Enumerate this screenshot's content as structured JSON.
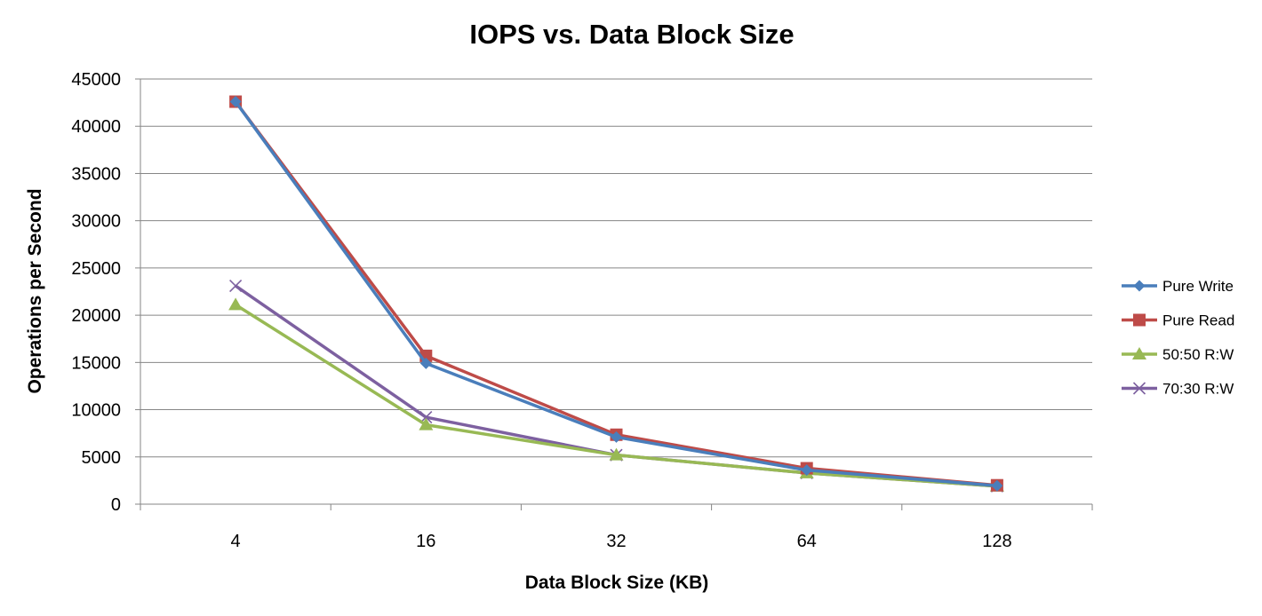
{
  "chart_data": {
    "type": "line",
    "title": "IOPS vs. Data Block Size",
    "xlabel": "Data Block Size (KB)",
    "ylabel": "Operations per Second",
    "categories": [
      "4",
      "16",
      "32",
      "64",
      "128"
    ],
    "ylim": [
      0,
      45000
    ],
    "yticks": [
      "0",
      "5000",
      "10000",
      "15000",
      "20000",
      "25000",
      "30000",
      "35000",
      "40000",
      "45000"
    ],
    "grid": true,
    "legend_position": "right",
    "series": [
      {
        "name": "Pure Write",
        "color": "#4a7ebb",
        "marker": "diamond",
        "values": [
          42600,
          14900,
          7100,
          3600,
          1950
        ]
      },
      {
        "name": "Pure Read",
        "color": "#be4b48",
        "marker": "square",
        "values": [
          42600,
          15700,
          7350,
          3800,
          2000
        ]
      },
      {
        "name": "50:50 R:W",
        "color": "#98b954",
        "marker": "triangle",
        "values": [
          21100,
          8400,
          5200,
          3300,
          1900
        ]
      },
      {
        "name": "70:30 R:W",
        "color": "#7d60a0",
        "marker": "x",
        "values": [
          23100,
          9200,
          5200,
          3300,
          1900
        ]
      }
    ]
  }
}
